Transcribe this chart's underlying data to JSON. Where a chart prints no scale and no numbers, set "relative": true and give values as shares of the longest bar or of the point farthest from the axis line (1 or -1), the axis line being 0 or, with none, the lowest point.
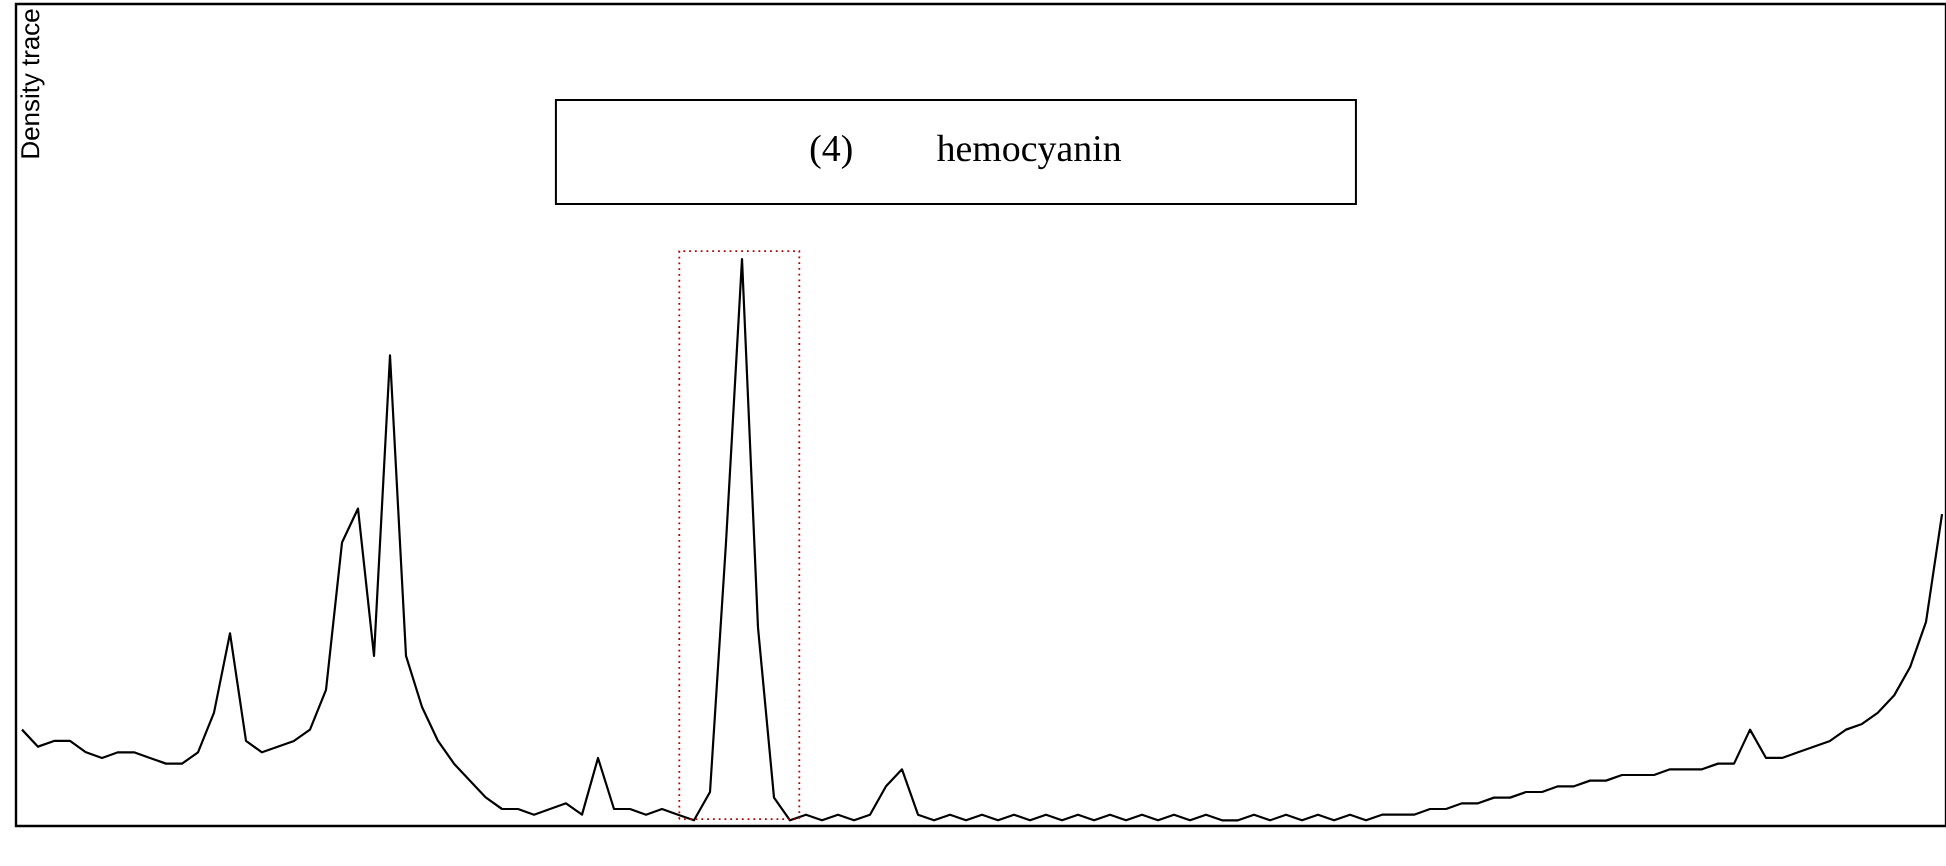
{
  "chart_data": {
    "type": "line",
    "relative": true,
    "ylabel": "Density trace",
    "annotations": [
      "(4)",
      "hemocyanin"
    ],
    "categories": [
      null,
      null,
      null,
      null,
      null,
      null,
      null,
      null,
      null,
      null,
      null,
      null,
      null,
      null,
      null,
      null,
      null,
      null,
      null,
      null,
      null,
      null,
      null,
      null,
      null,
      null,
      null,
      null,
      null,
      null,
      null,
      null,
      null,
      null,
      null,
      null,
      null,
      null,
      null,
      null,
      null,
      null,
      null,
      null,
      null,
      null,
      null,
      null,
      null,
      null,
      null,
      null,
      null,
      null,
      null,
      null,
      null,
      null,
      null,
      null,
      null,
      null,
      null,
      null,
      null,
      null,
      null,
      null,
      null,
      null,
      null,
      null,
      null,
      null,
      null,
      null,
      null,
      null,
      null,
      null,
      null,
      null,
      null,
      null,
      null,
      null,
      null,
      null,
      null,
      null,
      null,
      null,
      null,
      null,
      null,
      null,
      null,
      null,
      null,
      null,
      null,
      null,
      null,
      null,
      null,
      null,
      null,
      null,
      null,
      null,
      null,
      null,
      null,
      null,
      null,
      null,
      null,
      null,
      null,
      null,
      null
    ],
    "series": [
      {
        "color": "#000000",
        "values": [
          0.17,
          0.14,
          0.15,
          0.15,
          0.13,
          0.12,
          0.13,
          0.13,
          0.12,
          0.11,
          0.11,
          0.13,
          0.2,
          0.34,
          0.15,
          0.13,
          0.14,
          0.15,
          0.17,
          0.24,
          0.5,
          0.56,
          0.3,
          0.83,
          0.3,
          0.21,
          0.15,
          0.11,
          0.08,
          0.05,
          0.03,
          0.03,
          0.02,
          0.03,
          0.04,
          0.02,
          0.12,
          0.03,
          0.03,
          0.02,
          0.03,
          0.02,
          0.01,
          0.06,
          0.5,
          1,
          0.35,
          0.05,
          0.01,
          0.02,
          0.01,
          0.02,
          0.01,
          0.02,
          0.07,
          0.1,
          0.02,
          0.01,
          0.02,
          0.01,
          0.02,
          0.01,
          0.02,
          0.01,
          0.02,
          0.01,
          0.02,
          0.01,
          0.02,
          0.01,
          0.02,
          0.01,
          0.02,
          0.01,
          0.02,
          0.01,
          0.01,
          0.02,
          0.01,
          0.02,
          0.01,
          0.02,
          0.01,
          0.02,
          0.01,
          0.02,
          0.02,
          0.02,
          0.03,
          0.03,
          0.04,
          0.04,
          0.05,
          0.05,
          0.06,
          0.06,
          0.07,
          0.07,
          0.08,
          0.08,
          0.09,
          0.09,
          0.09,
          0.1,
          0.1,
          0.1,
          0.11,
          0.11,
          0.17,
          0.12,
          0.12,
          0.13,
          0.14,
          0.15,
          0.17,
          0.18,
          0.2,
          0.23,
          0.28,
          0.36,
          0.55
        ]
      }
    ],
    "marker": "none",
    "line_style": "solid"
  }
}
